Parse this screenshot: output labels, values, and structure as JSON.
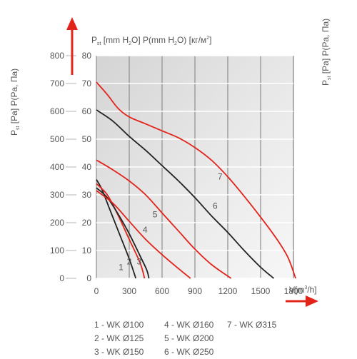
{
  "chart_data": {
    "type": "line",
    "ylabel_left_main": "P",
    "ylabel_left_sub": "st",
    "ylabel_left_rest": " [Pa] P(Pa, Па)",
    "ylabel_right_main": "P",
    "ylabel_right_sub": "st",
    "ylabel_right_rest": " [Pa] P(Pa, Па)",
    "top_axis_label": {
      "p1": "P",
      "p1_sub": "st",
      "p2": " [mm H",
      "p2_sub": "2",
      "p3": "O] P(mm H",
      "p3_sub": "2",
      "p4": "O) [кг/м",
      "p4_sup": "2",
      "p5": "]"
    },
    "xlabel_main": "V[m",
    "xlabel_sup": "3",
    "xlabel_rest": "/h]",
    "xlim": [
      0,
      1800
    ],
    "ylim": [
      0,
      800
    ],
    "x_ticks": [
      "0",
      "300",
      "600",
      "900",
      "1200",
      "1500",
      "1800"
    ],
    "y_ticks_pa": [
      "0",
      "100",
      "200",
      "300",
      "400",
      "500",
      "600",
      "700",
      "800"
    ],
    "y_ticks_mm": [
      "0",
      "10",
      "20",
      "30",
      "40",
      "50",
      "60",
      "70",
      "80"
    ],
    "colors": {
      "red": "#e2231a",
      "black": "#222222",
      "grid": "#888888"
    },
    "series": [
      {
        "name": "1",
        "color": "black",
        "points": [
          [
            0,
            355
          ],
          [
            50,
            320
          ],
          [
            120,
            250
          ],
          [
            200,
            170
          ],
          [
            300,
            70
          ],
          [
            360,
            0
          ]
        ]
      },
      {
        "name": "2",
        "color": "red",
        "points": [
          [
            0,
            340
          ],
          [
            100,
            300
          ],
          [
            200,
            225
          ],
          [
            300,
            140
          ],
          [
            400,
            55
          ],
          [
            440,
            0
          ]
        ]
      },
      {
        "name": "3",
        "color": "black",
        "points": [
          [
            0,
            325
          ],
          [
            100,
            290
          ],
          [
            200,
            230
          ],
          [
            300,
            160
          ],
          [
            400,
            80
          ],
          [
            460,
            30
          ],
          [
            480,
            0
          ]
        ]
      },
      {
        "name": "4",
        "color": "red",
        "points": [
          [
            0,
            315
          ],
          [
            150,
            270
          ],
          [
            300,
            205
          ],
          [
            450,
            140
          ],
          [
            600,
            85
          ],
          [
            750,
            35
          ],
          [
            860,
            0
          ]
        ]
      },
      {
        "name": "5",
        "color": "red",
        "points": [
          [
            0,
            425
          ],
          [
            150,
            390
          ],
          [
            300,
            350
          ],
          [
            450,
            300
          ],
          [
            600,
            235
          ],
          [
            750,
            170
          ],
          [
            900,
            105
          ],
          [
            1050,
            50
          ],
          [
            1230,
            0
          ]
        ]
      },
      {
        "name": "6",
        "color": "black",
        "points": [
          [
            0,
            605
          ],
          [
            150,
            565
          ],
          [
            300,
            510
          ],
          [
            450,
            460
          ],
          [
            600,
            405
          ],
          [
            750,
            350
          ],
          [
            900,
            290
          ],
          [
            1050,
            225
          ],
          [
            1200,
            165
          ],
          [
            1350,
            100
          ],
          [
            1500,
            40
          ],
          [
            1620,
            0
          ]
        ]
      },
      {
        "name": "7",
        "color": "red",
        "points": [
          [
            0,
            705
          ],
          [
            100,
            660
          ],
          [
            200,
            610
          ],
          [
            300,
            580
          ],
          [
            450,
            555
          ],
          [
            600,
            530
          ],
          [
            750,
            505
          ],
          [
            900,
            470
          ],
          [
            1050,
            425
          ],
          [
            1200,
            365
          ],
          [
            1350,
            295
          ],
          [
            1500,
            220
          ],
          [
            1650,
            140
          ],
          [
            1750,
            75
          ],
          [
            1820,
            0
          ]
        ]
      }
    ],
    "curve_labels": [
      {
        "text": "1",
        "x": 225,
        "y": 40
      },
      {
        "text": "2",
        "x": 300,
        "y": 60
      },
      {
        "text": "3",
        "x": 390,
        "y": 60
      },
      {
        "text": "4",
        "x": 445,
        "y": 175
      },
      {
        "text": "5",
        "x": 535,
        "y": 230
      },
      {
        "text": "6",
        "x": 1085,
        "y": 260
      },
      {
        "text": "7",
        "x": 1130,
        "y": 365
      }
    ]
  },
  "legend": [
    [
      "1 - WK Ø100",
      "2 - WK Ø125",
      "3 - WK Ø150"
    ],
    [
      "4 - WK Ø160",
      "5 - WK Ø200",
      "6 - WK Ø250"
    ],
    [
      "7 - WK Ø315"
    ]
  ]
}
